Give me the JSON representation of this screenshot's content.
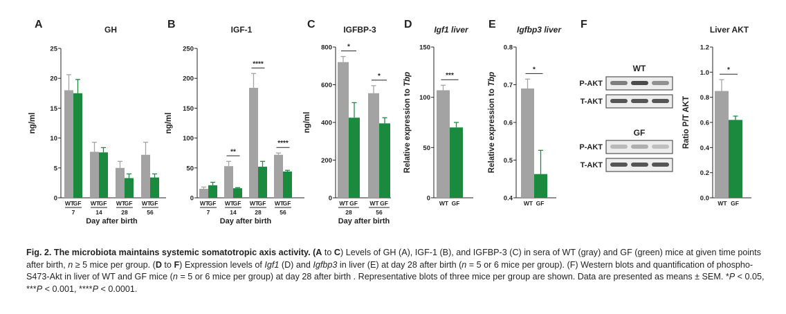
{
  "colors": {
    "wt": "#a3a3a3",
    "gf": "#1a8a3e",
    "axis": "#222222",
    "text": "#222222"
  },
  "chart_data": [
    {
      "panel": "A",
      "type": "bar",
      "title": "GH",
      "ylabel": "ng/ml",
      "xlabel": "Day after birth",
      "ylim": [
        0,
        25
      ],
      "yticks": [
        0,
        5,
        10,
        15,
        20,
        25
      ],
      "group_labels": [
        "7",
        "14",
        "28",
        "56"
      ],
      "bar_labels": [
        "WT",
        "GF",
        "WT",
        "GF",
        "WT",
        "GF",
        "WT",
        "GF"
      ],
      "series": [
        {
          "name": "WT",
          "values": [
            18.0,
            7.7,
            5.0,
            7.2
          ],
          "errors": [
            2.6,
            1.6,
            1.1,
            2.1
          ]
        },
        {
          "name": "GF",
          "values": [
            17.5,
            7.6,
            3.3,
            3.4
          ],
          "errors": [
            2.3,
            0.8,
            0.7,
            0.6
          ]
        }
      ],
      "significance": []
    },
    {
      "panel": "B",
      "type": "bar",
      "title": "IGF-1",
      "ylabel": "ng/ml",
      "xlabel": "Day after birth",
      "ylim": [
        0,
        250
      ],
      "yticks": [
        0,
        50,
        100,
        150,
        200,
        250
      ],
      "group_labels": [
        "7",
        "14",
        "28",
        "56"
      ],
      "bar_labels": [
        "WT",
        "GF",
        "WT",
        "GF",
        "WT",
        "GF",
        "WT",
        "GF"
      ],
      "series": [
        {
          "name": "WT",
          "values": [
            15,
            53,
            184,
            72
          ],
          "errors": [
            3,
            8,
            24,
            3
          ]
        },
        {
          "name": "GF",
          "values": [
            21,
            16,
            52,
            44
          ],
          "errors": [
            5,
            1,
            9,
            2
          ]
        }
      ],
      "significance": [
        {
          "group": 1,
          "label": "**"
        },
        {
          "group": 2,
          "label": "****"
        },
        {
          "group": 3,
          "label": "****"
        }
      ]
    },
    {
      "panel": "C",
      "type": "bar",
      "title": "IGFBP-3",
      "ylabel": "ng/ml",
      "xlabel": "Day after birth",
      "ylim": [
        0,
        800
      ],
      "yticks": [
        0,
        200,
        400,
        600,
        800
      ],
      "group_labels": [
        "28",
        "56"
      ],
      "bar_labels": [
        "WT",
        "GF",
        "WT",
        "GF"
      ],
      "series": [
        {
          "name": "WT",
          "values": [
            720,
            555
          ],
          "errors": [
            30,
            40
          ]
        },
        {
          "name": "GF",
          "values": [
            425,
            395
          ],
          "errors": [
            80,
            30
          ]
        }
      ],
      "significance": [
        {
          "group": 0,
          "label": "*"
        },
        {
          "group": 1,
          "label": "*"
        }
      ]
    },
    {
      "panel": "D",
      "type": "bar",
      "title": "Igf1 liver",
      "ylabel": "Relative expression to Tbp",
      "xlabel": "",
      "ylim": [
        0,
        150
      ],
      "yticks": [
        0,
        50,
        100,
        150
      ],
      "group_labels": [],
      "bar_labels": [
        "WT",
        "GF"
      ],
      "series": [
        {
          "name": "WT",
          "values": [
            107
          ],
          "errors": [
            5
          ]
        },
        {
          "name": "GF",
          "values": [
            70
          ],
          "errors": [
            5
          ]
        }
      ],
      "significance": [
        {
          "group": 0,
          "label": "***"
        }
      ]
    },
    {
      "panel": "E",
      "type": "bar",
      "title": "Igfbp3 liver",
      "ylabel": "Relative expression to Tbp",
      "xlabel": "",
      "ylim": [
        0.4,
        0.8
      ],
      "yticks": [
        0.4,
        0.5,
        0.6,
        0.7,
        0.8
      ],
      "group_labels": [],
      "bar_labels": [
        "WT",
        "GF"
      ],
      "series": [
        {
          "name": "WT",
          "values": [
            0.69
          ],
          "errors": [
            0.025
          ]
        },
        {
          "name": "GF",
          "values": [
            0.463
          ],
          "errors": [
            0.063
          ]
        }
      ],
      "significance": [
        {
          "group": 0,
          "label": "*"
        }
      ]
    },
    {
      "panel": "F",
      "type": "bar",
      "title": "Liver AKT",
      "ylabel": "Ratio P/T AKT",
      "xlabel": "",
      "ylim": [
        0,
        1.2
      ],
      "yticks": [
        0.0,
        0.2,
        0.4,
        0.6,
        0.8,
        1.0,
        1.2
      ],
      "group_labels": [],
      "bar_labels": [
        "WT",
        "GF"
      ],
      "series": [
        {
          "name": "WT",
          "values": [
            0.85
          ],
          "errors": [
            0.09
          ]
        },
        {
          "name": "GF",
          "values": [
            0.62
          ],
          "errors": [
            0.03
          ]
        }
      ],
      "significance": [
        {
          "group": 0,
          "label": "*"
        }
      ]
    }
  ],
  "western_blot": {
    "groups": [
      {
        "title": "WT",
        "rows": [
          "P-AKT",
          "T-AKT"
        ]
      },
      {
        "title": "GF",
        "rows": [
          "P-AKT",
          "T-AKT"
        ]
      }
    ]
  },
  "caption": {
    "parts": [
      {
        "t": "Fig. 2. The microbiota maintains systemic somatotropic axis activity. (",
        "b": true
      },
      {
        "t": "A",
        "b": true
      },
      {
        "t": " to "
      },
      {
        "t": "C",
        "b": true
      },
      {
        "t": ") Levels of GH (A), IGF-1 (B), and IGFBP-3 (C) in sera of WT (gray) and GF (green) mice at given time points after birth, "
      },
      {
        "t": "n",
        "i": true
      },
      {
        "t": " ≥ 5 mice per group. ("
      },
      {
        "t": "D",
        "b": true
      },
      {
        "t": " to "
      },
      {
        "t": "F",
        "b": true
      },
      {
        "t": ") Expression levels of "
      },
      {
        "t": "Igf1",
        "i": true
      },
      {
        "t": " (D) and "
      },
      {
        "t": "Igfbp3",
        "i": true
      },
      {
        "t": " in liver (E) at day 28 after birth ("
      },
      {
        "t": "n",
        "i": true
      },
      {
        "t": " = 5 or 6 mice per group). (F) Western blots and quantification of phospho-S473-Akt in liver of WT and GF mice ("
      },
      {
        "t": "n",
        "i": true
      },
      {
        "t": " = 5 or 6 mice per group) at day 28 after birth . Representative blots of three mice per group are shown. Data are presented as means ± SEM. *"
      },
      {
        "t": "P",
        "i": true
      },
      {
        "t": " < 0.05, ***"
      },
      {
        "t": "P",
        "i": true
      },
      {
        "t": " < 0.001, ****"
      },
      {
        "t": "P",
        "i": true
      },
      {
        "t": " < 0.0001."
      }
    ]
  }
}
